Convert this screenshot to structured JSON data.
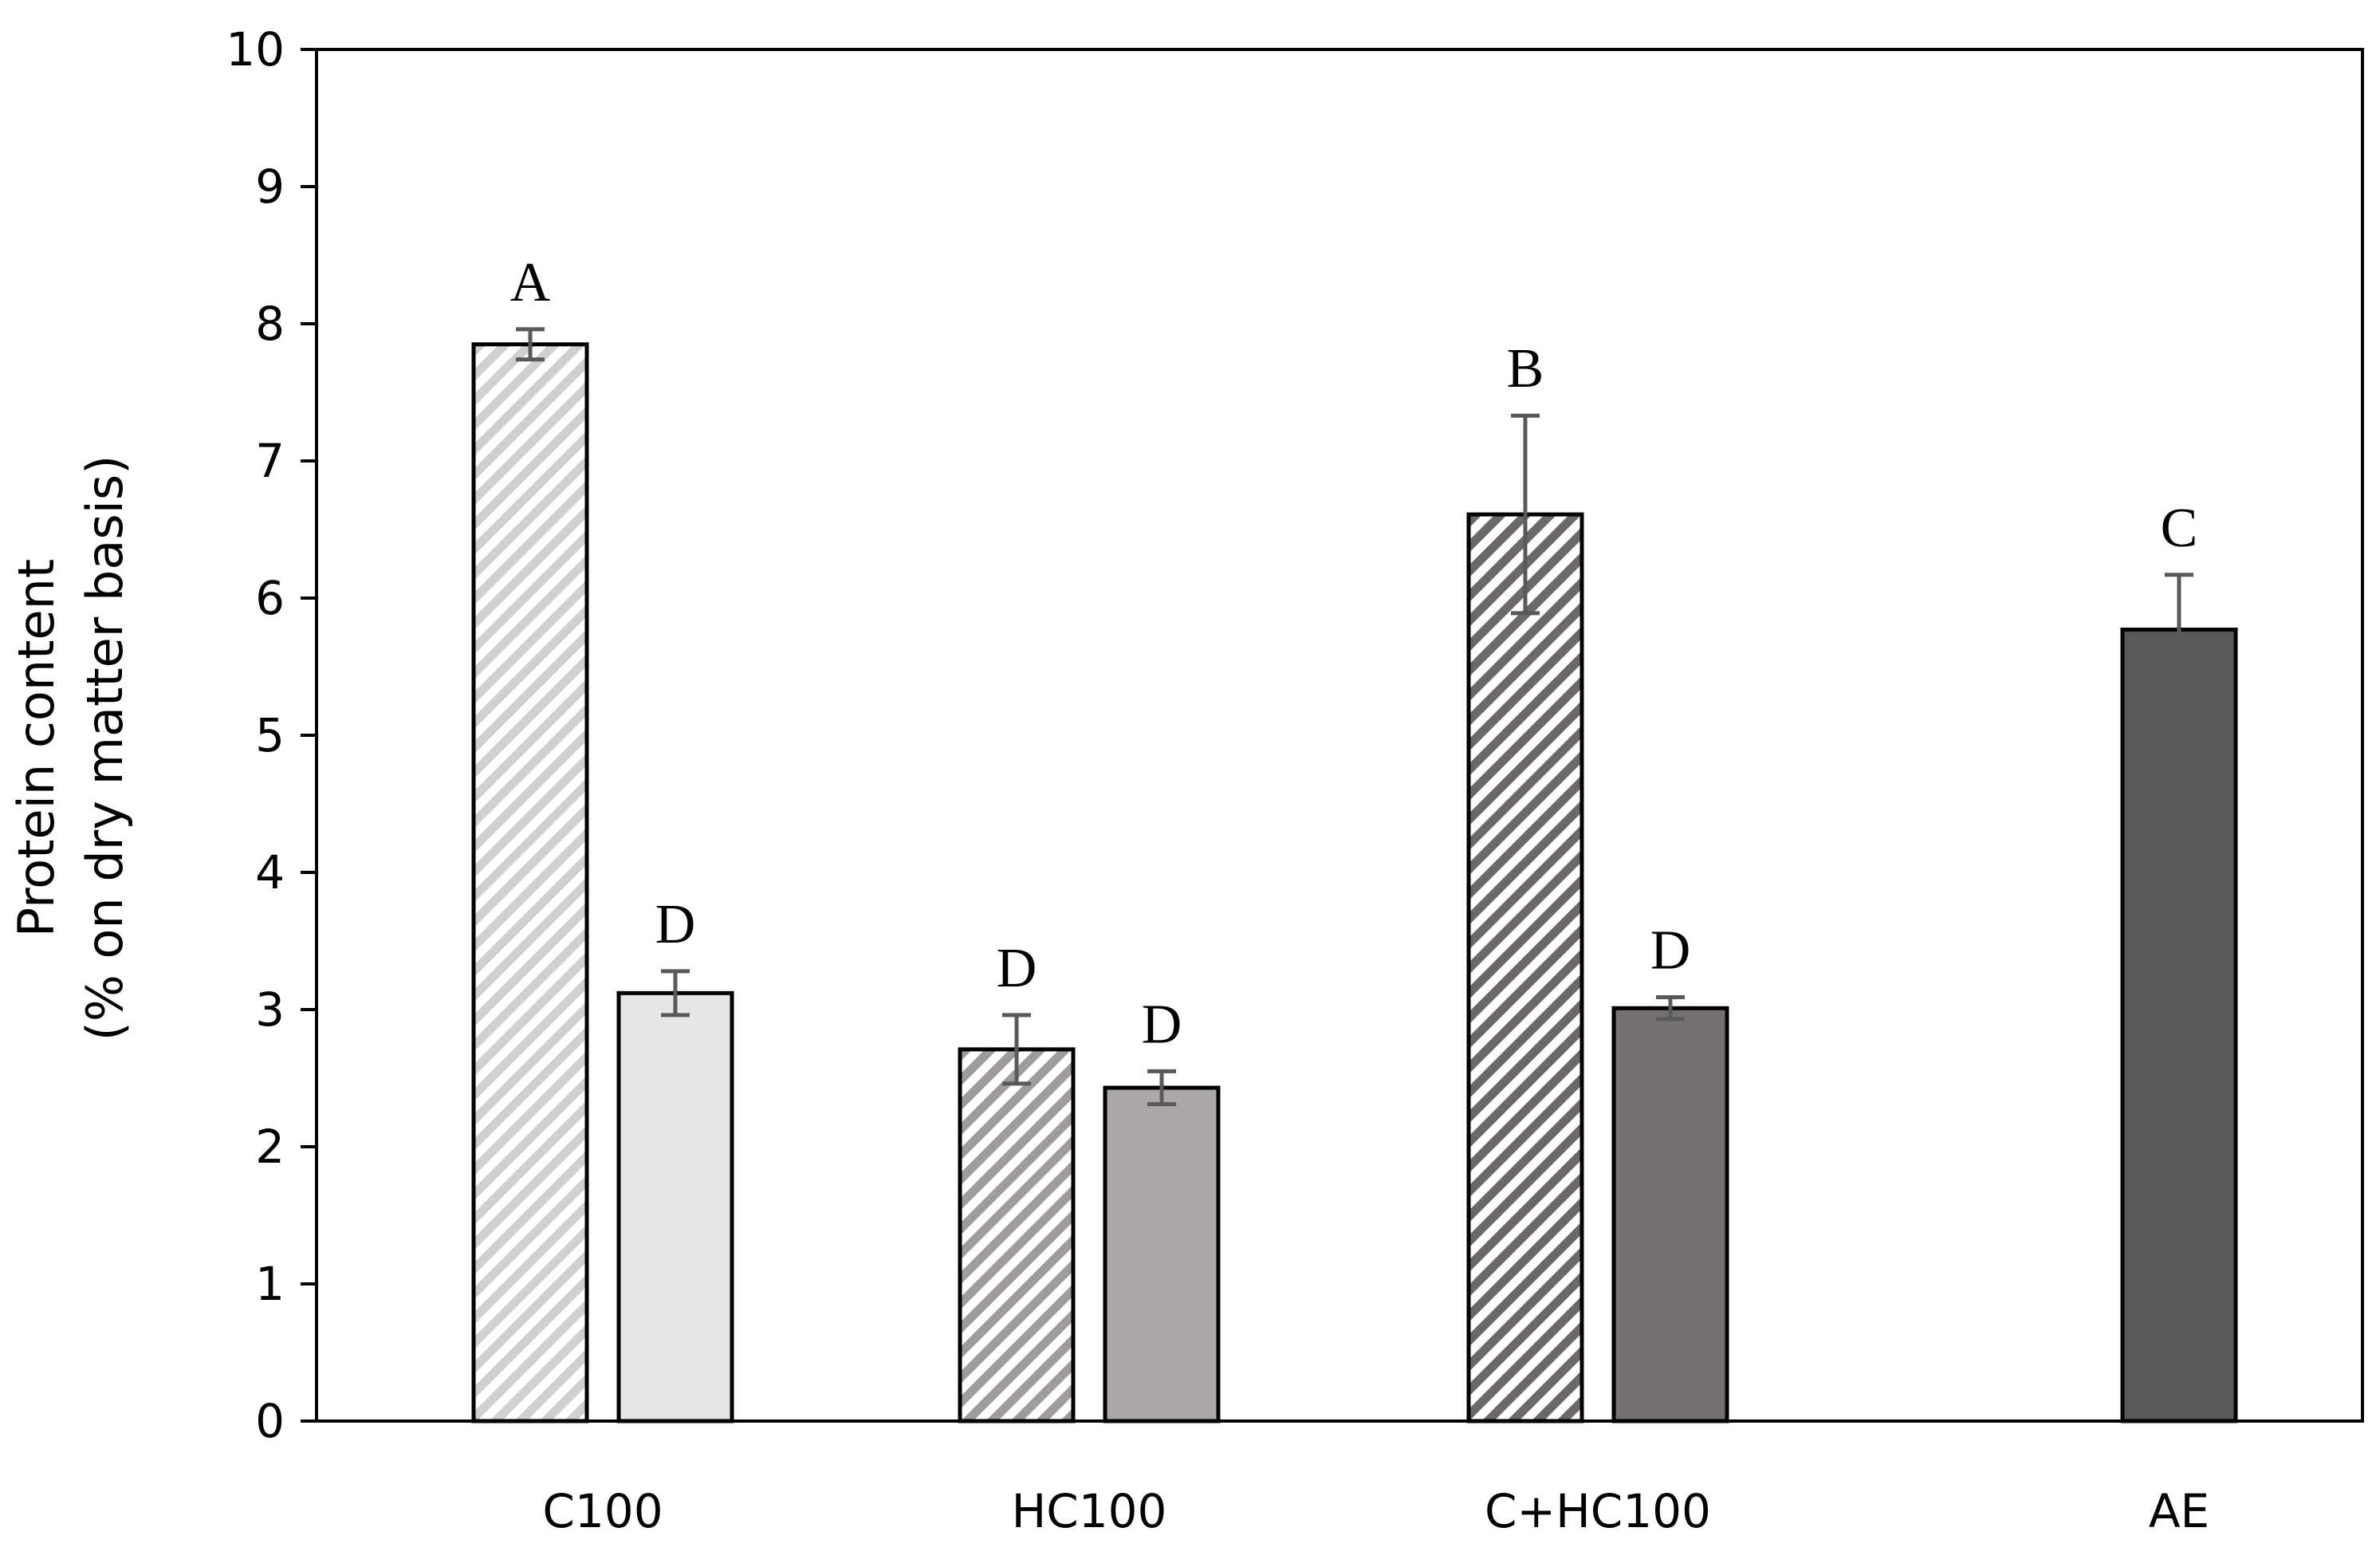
{
  "chart_data": {
    "type": "bar",
    "ylabel_line1": "Protein content",
    "ylabel_line2": "(% on dry matter basis)",
    "ylim": [
      0,
      10
    ],
    "yticks": [
      "0",
      "1",
      "2",
      "3",
      "4",
      "5",
      "6",
      "7",
      "8",
      "9",
      "10"
    ],
    "grid": false,
    "categories": [
      "C100",
      "HC100",
      "C+HC100",
      "AE"
    ],
    "bars": [
      {
        "category": "C100",
        "value": 7.85,
        "error": 0.11,
        "letter": "A",
        "fill": "#e6e6e6",
        "hatched": true,
        "stripe": "#d0d0d0"
      },
      {
        "category": "C100",
        "value": 3.12,
        "error": 0.16,
        "letter": "D",
        "fill": "#e6e6e6",
        "hatched": false
      },
      {
        "category": "HC100",
        "value": 2.71,
        "error": 0.25,
        "letter": "D",
        "fill": "#aaa7a6",
        "hatched": true,
        "stripe": "#9f9c9b"
      },
      {
        "category": "HC100",
        "value": 2.43,
        "error": 0.12,
        "letter": "D",
        "fill": "#aaa7a6",
        "hatched": false
      },
      {
        "category": "C+HC100",
        "value": 6.61,
        "error": 0.72,
        "letter": "B",
        "fill": "#767171",
        "hatched": true,
        "stripe": "#6c6868"
      },
      {
        "category": "C+HC100",
        "value": 3.01,
        "error": 0.08,
        "letter": "D",
        "fill": "#767171",
        "hatched": false
      },
      {
        "category": "AE",
        "value": 5.77,
        "error": 0.4,
        "letter": "C",
        "fill": "#595959",
        "hatched": false
      }
    ],
    "colors": {
      "axis": "#000000",
      "error_bar": "#595959",
      "bar_outline": "#000000"
    }
  }
}
